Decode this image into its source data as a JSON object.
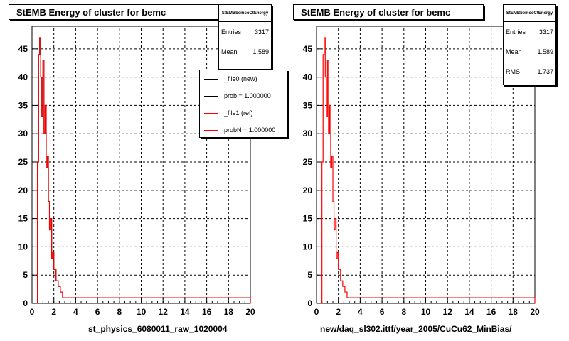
{
  "panels": [
    {
      "title": "StEMB Energy of cluster for bemc",
      "xlabel": "st_physics_6080011_raw_1020004",
      "stats": {
        "name": "StEMBbemcoCtEnergy",
        "entries_label": "Entries",
        "entries": "3317",
        "mean_label": "Mean",
        "mean": "1.589"
      },
      "legend": [
        {
          "label": "_file0 (new)",
          "color": "#000000"
        },
        {
          "label": "prob = 1.000000",
          "color": "#000000"
        },
        {
          "label": "_file1 (ref)",
          "color": "#ff0000"
        },
        {
          "label": "probN = 1.000000",
          "color": "#ff0000"
        }
      ]
    },
    {
      "title": "StEMB Energy of cluster for bemc",
      "xlabel": "new/daq_sl302.ittf/year_2005/CuCu62_MinBias/",
      "stats": {
        "name": "StEMBbemcoCtEnergy",
        "entries_label": "Entries",
        "entries": "3317",
        "mean_label": "Mean",
        "mean": "1.589",
        "rms_label": "RMS",
        "rms": "1.737"
      }
    }
  ],
  "colors": {
    "hist_line": "#ff0000",
    "grid": "#000000",
    "frame": "#000000"
  },
  "chart_data": [
    {
      "type": "line",
      "title": "StEMB Energy of cluster for bemc",
      "xlabel": "st_physics_6080011_raw_1020004",
      "ylabel": "",
      "xlim": [
        0,
        20
      ],
      "ylim": [
        0,
        49
      ],
      "xticks": [
        0,
        2,
        4,
        6,
        8,
        10,
        12,
        14,
        16,
        18,
        20
      ],
      "yticks": [
        0,
        5,
        10,
        15,
        20,
        25,
        30,
        35,
        40,
        45
      ],
      "grid": true,
      "legend_position": "top-right",
      "series": [
        {
          "name": "_file0 (new)",
          "color": "#000000",
          "x": [
            0.5,
            0.6,
            0.7,
            0.8,
            0.9,
            1.0,
            1.1,
            1.2,
            1.3,
            1.4,
            1.5,
            1.6,
            1.7,
            1.8,
            1.9,
            2.0,
            2.2,
            2.4,
            2.6,
            2.8,
            3.0,
            3.5,
            4.0,
            5.0,
            6.0,
            8.0,
            10.0,
            12.0,
            14.0,
            16.0,
            18.0,
            20.0
          ],
          "y": [
            25,
            44,
            47,
            40,
            33,
            43,
            30,
            35,
            24,
            26,
            18,
            13,
            15,
            8,
            9,
            6,
            4,
            3,
            2,
            1,
            1,
            1,
            1,
            1,
            1,
            1,
            1,
            1,
            1,
            1,
            1,
            0
          ]
        },
        {
          "name": "_file1 (ref)",
          "color": "#ff0000",
          "x": [
            0.5,
            0.6,
            0.7,
            0.8,
            0.9,
            1.0,
            1.1,
            1.2,
            1.3,
            1.4,
            1.5,
            1.6,
            1.7,
            1.8,
            1.9,
            2.0,
            2.2,
            2.4,
            2.6,
            2.8,
            3.0,
            3.5,
            4.0,
            5.0,
            6.0,
            8.0,
            10.0,
            12.0,
            14.0,
            16.0,
            18.0,
            20.0
          ],
          "y": [
            25,
            44,
            47,
            40,
            33,
            43,
            30,
            35,
            24,
            26,
            18,
            13,
            15,
            8,
            9,
            6,
            4,
            3,
            2,
            1,
            1,
            1,
            1,
            1,
            1,
            1,
            1,
            1,
            1,
            1,
            1,
            0
          ]
        }
      ]
    },
    {
      "type": "line",
      "title": "StEMB Energy of cluster for bemc",
      "xlabel": "new/daq_sl302.ittf/year_2005/CuCu62_MinBias/",
      "ylabel": "",
      "xlim": [
        0,
        20
      ],
      "ylim": [
        0,
        49
      ],
      "xticks": [
        0,
        2,
        4,
        6,
        8,
        10,
        12,
        14,
        16,
        18,
        20
      ],
      "yticks": [
        0,
        5,
        10,
        15,
        20,
        25,
        30,
        35,
        40,
        45
      ],
      "grid": true,
      "series": [
        {
          "color": "#ff0000",
          "x": [
            0.5,
            0.6,
            0.7,
            0.8,
            0.9,
            1.0,
            1.1,
            1.2,
            1.3,
            1.4,
            1.5,
            1.6,
            1.7,
            1.8,
            1.9,
            2.0,
            2.2,
            2.4,
            2.6,
            2.8,
            3.0,
            3.5,
            4.0,
            5.0,
            6.0,
            8.0,
            10.0,
            12.0,
            14.0,
            16.0,
            18.0,
            20.0
          ],
          "y": [
            25,
            44,
            47,
            40,
            33,
            43,
            30,
            35,
            24,
            26,
            18,
            13,
            15,
            8,
            9,
            6,
            4,
            3,
            2,
            1,
            1,
            1,
            1,
            1,
            1,
            1,
            1,
            1,
            1,
            1,
            1,
            0
          ]
        }
      ]
    }
  ]
}
